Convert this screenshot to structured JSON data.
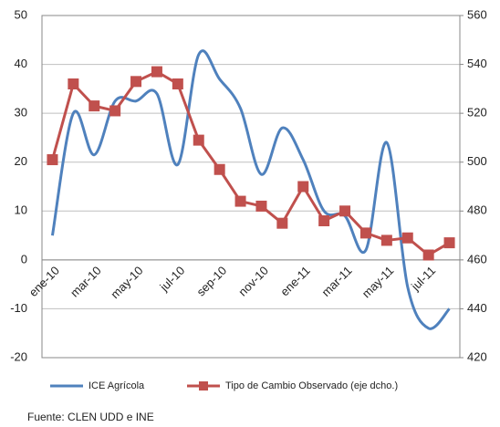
{
  "chart_data": {
    "type": "line",
    "categories": [
      "ene-10",
      null,
      "mar-10",
      null,
      "may-10",
      null,
      "jul-10",
      null,
      "sep-10",
      null,
      "nov-10",
      null,
      "ene-11",
      null,
      "mar-11",
      null,
      "may-11",
      null,
      "jul-11",
      null
    ],
    "series": [
      {
        "name": "ICE Agrícola",
        "color": "#4f81bd",
        "smooth": true,
        "values": [
          5,
          30,
          21.5,
          32.5,
          32.5,
          34,
          19.5,
          42,
          37,
          31,
          17.5,
          27,
          20.5,
          10,
          9,
          2,
          24,
          -5.5,
          -14,
          -10
        ]
      },
      {
        "name": "Tipo de Cambio Observado (eje dcho.)",
        "color": "#c0504d",
        "axis": "y2",
        "marker": "square",
        "values": [
          501,
          532,
          523,
          521,
          533,
          537,
          532,
          509,
          497,
          484,
          482,
          475,
          490,
          476,
          480,
          471,
          468,
          469,
          462,
          467
        ]
      }
    ],
    "ylim": [
      -20,
      50
    ],
    "yticks": [
      -20,
      -10,
      0,
      10,
      20,
      30,
      40,
      50
    ],
    "y2lim": [
      420,
      560
    ],
    "y2ticks": [
      420,
      440,
      460,
      480,
      500,
      520,
      540,
      560
    ],
    "grid": true,
    "legend": "bottom",
    "source": "Fuente: CLEN UDD e INE"
  }
}
